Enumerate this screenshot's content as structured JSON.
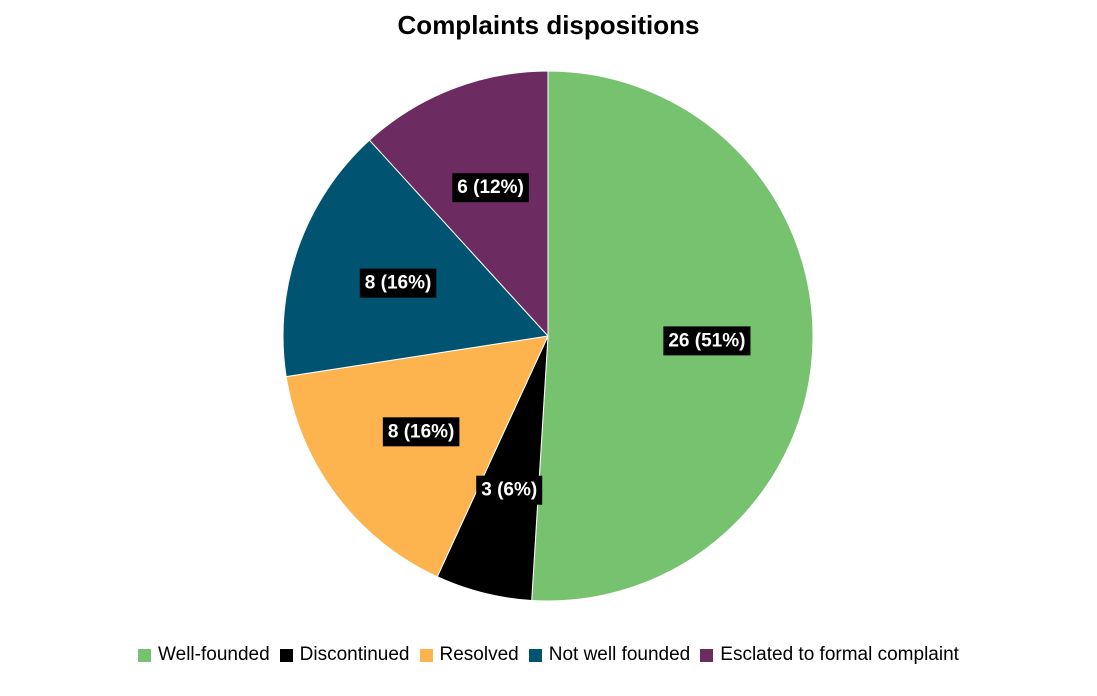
{
  "chart_data": {
    "type": "pie",
    "title": "Complaints dispositions",
    "legend_position": "bottom",
    "slices": [
      {
        "name": "Well-founded",
        "value": 26,
        "label": "26 (51%)",
        "color": "#77c26e"
      },
      {
        "name": "Discontinued",
        "value": 3,
        "label": "3 (6%)",
        "color": "#000000"
      },
      {
        "name": "Resolved",
        "value": 8,
        "label": "8 (16%)",
        "color": "#fdb44f"
      },
      {
        "name": "Not well founded",
        "value": 8,
        "label": "8 (16%)",
        "color": "#005472"
      },
      {
        "name": "Esclated to formal complaint",
        "value": 6,
        "label": "6 (12%)",
        "color": "#6d2c61"
      }
    ]
  }
}
